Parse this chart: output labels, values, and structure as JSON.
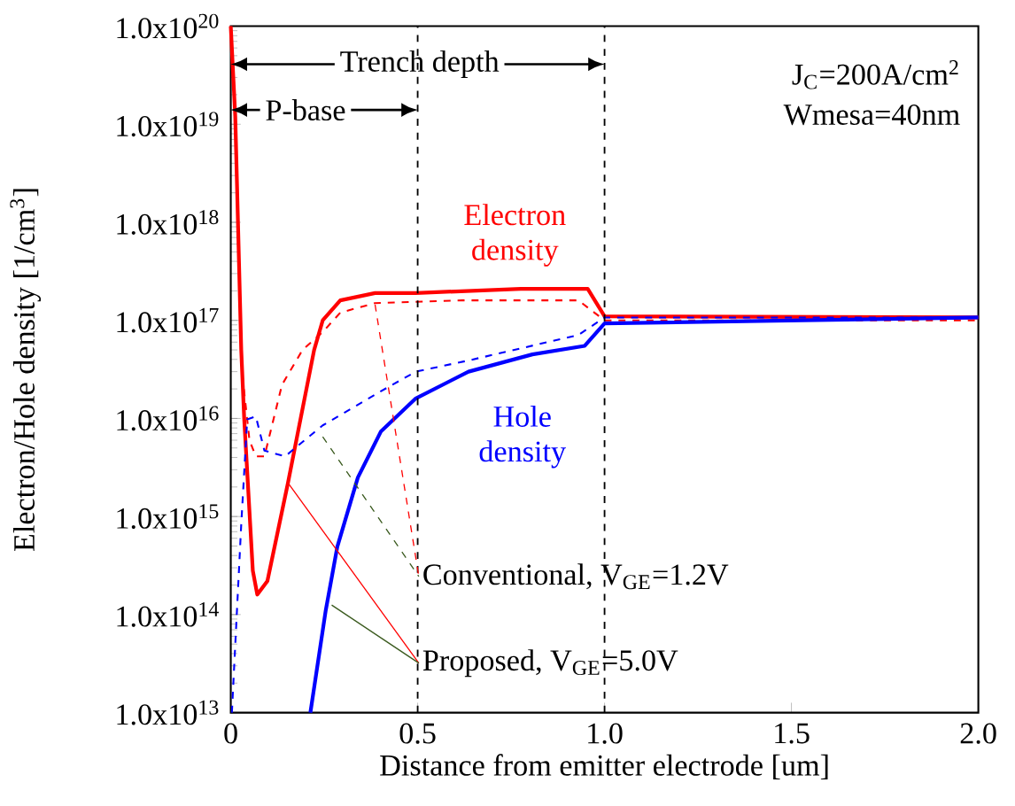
{
  "chart_data": {
    "type": "line",
    "xlabel": "Distance from emitter electrode [um]",
    "ylabel": "Electron/Hole density [1/cm$^{3}$]",
    "log": "y",
    "xlim": [
      0,
      2.0
    ],
    "ylim": [
      10000000000000.0,
      1e+20
    ],
    "xticks": [
      0,
      0.5,
      {
        "value": 1.0,
        "label": "1.0"
      },
      1.5,
      {
        "value": 2.0,
        "label": "2.0"
      }
    ],
    "yticks": [
      {
        "value": 10000000000000.0,
        "label": "1.0x10$^{13}$"
      },
      {
        "value": 100000000000000.0,
        "label": "1.0x10$^{14}$"
      },
      {
        "value": 1000000000000000.0,
        "label": "1.0x10$^{15}$"
      },
      {
        "value": 1e+16,
        "label": "1.0x10$^{16}$"
      },
      {
        "value": 1e+17,
        "label": "1.0x10$^{17}$"
      },
      {
        "value": 1e+18,
        "label": "1.0x10$^{18}$"
      },
      {
        "value": 1e+19,
        "label": "1.0x10$^{19}$"
      },
      {
        "value": 1e+20,
        "label": "1.0x10$^{20}$"
      }
    ],
    "series": [
      {
        "color": "#ff0000",
        "line_style": "solid",
        "x": [
          0,
          0.012,
          0.028,
          0.036,
          0.059,
          0.071,
          0.098,
          0.153,
          0.223,
          0.246,
          0.293,
          0.386,
          0.495,
          0.776,
          0.955,
          1.0,
          2.0
        ],
        "values": [
          1e+20,
          1.2e+19,
          5e+16,
          9800000000000000.0,
          280000000000000.0,
          160000000000000.0,
          220000000000000.0,
          2200000000000000.0,
          5e+16,
          1e+17,
          1.6e+17,
          1.9e+17,
          1.9e+17,
          2.1e+17,
          2.1e+17,
          1.1e+17,
          1.07e+17
        ]
      },
      {
        "color": "#ff0000",
        "line_style": "dashed",
        "x": [
          0,
          0.012,
          0.03,
          0.05,
          0.067,
          0.09,
          0.137,
          0.192,
          0.246,
          0.293,
          0.386,
          0.62,
          0.93,
          1.0,
          2.0
        ],
        "values": [
          1e+20,
          1.2e+19,
          3e+16,
          6000000000000000.0,
          4100000000000000.0,
          4100000000000000.0,
          2.2e+16,
          5e+16,
          7.6e+16,
          1.2e+17,
          1.5e+17,
          1.6e+17,
          1.6e+17,
          1e+17,
          1e+17
        ]
      },
      {
        "color": "#0000ff",
        "line_style": "solid",
        "x": [
          0.213,
          0.254,
          0.285,
          0.34,
          0.402,
          0.495,
          0.636,
          0.807,
          0.947,
          1.0,
          2.0
        ],
        "values": [
          10000000000000.0,
          110000000000000.0,
          490000000000000.0,
          2500000000000000.0,
          7400000000000000.0,
          1.6e+16,
          3e+16,
          4.5e+16,
          5.5e+16,
          9.3e+16,
          1.07e+17
        ]
      },
      {
        "color": "#0000ff",
        "line_style": "dashed",
        "x": [
          0.003,
          0.028,
          0.044,
          0.067,
          0.09,
          0.145,
          0.246,
          0.402,
          0.495,
          0.636,
          0.93,
          1.0,
          2.0
        ],
        "values": [
          10000000000000.0,
          830000000000000.0,
          9800000000000000.0,
          1.05e+16,
          4700000000000000.0,
          4100000000000000.0,
          8500000000000000.0,
          1.9e+16,
          3e+16,
          3.9e+16,
          7.1e+16,
          1.07e+17,
          1.07e+17
        ]
      }
    ],
    "ref_lines": [
      {
        "axis": "x",
        "value": 0.5,
        "color": "#000000",
        "line_style": "dashed"
      },
      {
        "axis": "x",
        "value": 1.0,
        "color": "#000000",
        "line_style": "dashed"
      }
    ],
    "annotations": [
      "Trench depth",
      "P-base",
      "J$_{C}$=200A/cm$^{2}$",
      "Wmesa=40nm",
      "Electron density",
      "Hole density",
      {
        "text": "Conventional, V$_{GE}$=1.2V",
        "x": 0.386,
        "y": 1.45e+17
      },
      {
        "text": "Proposed, V$_{GE}$=5.0V",
        "x": 0.153,
        "y": 2200000000000000.0
      }
    ]
  }
}
